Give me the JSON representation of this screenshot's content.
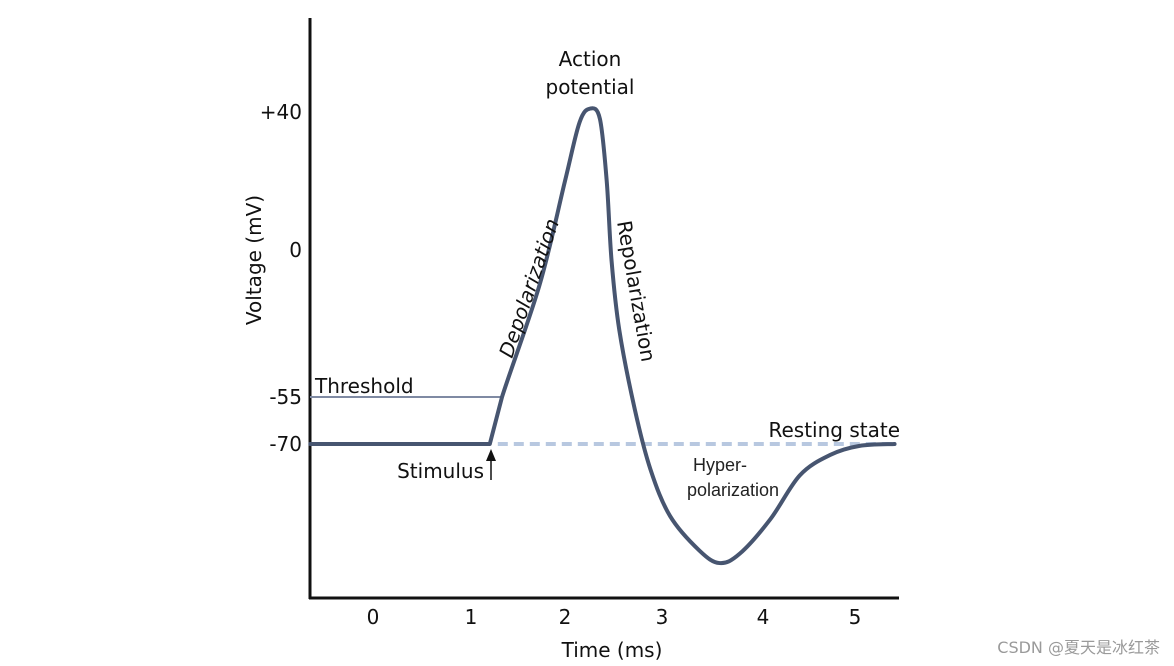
{
  "chart_data": {
    "type": "line",
    "title": "",
    "xlabel": "Time (ms)",
    "ylabel": "Voltage (mV)",
    "x_ticks": [
      "0",
      "1",
      "2",
      "3",
      "4",
      "5"
    ],
    "y_ticks": [
      "+40",
      "0",
      "-55",
      "-70"
    ],
    "xlim": [
      -0.64,
      5.45
    ],
    "grid": false,
    "series": [
      {
        "color": "#475570",
        "points": [
          [
            -0.64,
            -70
          ],
          [
            1.2,
            -70
          ],
          [
            1.33,
            -55
          ],
          [
            1.73,
            -13
          ],
          [
            2.0,
            20
          ],
          [
            2.15,
            37
          ],
          [
            2.26,
            41
          ],
          [
            2.36,
            38
          ],
          [
            2.43,
            20
          ],
          [
            2.48,
            -4
          ],
          [
            2.56,
            -30
          ],
          [
            2.72,
            -59
          ],
          [
            2.88,
            -78
          ],
          [
            3.08,
            -93
          ],
          [
            3.37,
            -104
          ],
          [
            3.57,
            -108
          ],
          [
            3.77,
            -105
          ],
          [
            4.08,
            -94
          ],
          [
            4.4,
            -80
          ],
          [
            4.73,
            -73.5
          ],
          [
            5.05,
            -70.6
          ],
          [
            5.43,
            -70
          ]
        ]
      }
    ],
    "threshold": {
      "value": -55,
      "label": "Threshold",
      "color": "#7f8aa3"
    },
    "resting": {
      "value": -70,
      "label": "Resting state",
      "color": "#b8c8e0",
      "style": "dashed"
    },
    "annotations": {
      "peak": [
        "Action",
        "potential"
      ],
      "depolarization": "Depolarization",
      "repolarization": "Repolarization",
      "hyper": [
        "Hyper-",
        "polarization"
      ],
      "stimulus": "Stimulus"
    }
  },
  "watermark": "CSDN @夏天是冰红茶"
}
